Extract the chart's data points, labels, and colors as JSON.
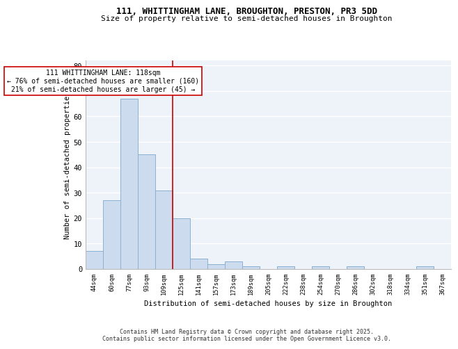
{
  "title1": "111, WHITTINGHAM LANE, BROUGHTON, PRESTON, PR3 5DD",
  "title2": "Size of property relative to semi-detached houses in Broughton",
  "xlabel": "Distribution of semi-detached houses by size in Broughton",
  "ylabel": "Number of semi-detached properties",
  "categories": [
    "44sqm",
    "60sqm",
    "77sqm",
    "93sqm",
    "109sqm",
    "125sqm",
    "141sqm",
    "157sqm",
    "173sqm",
    "189sqm",
    "205sqm",
    "222sqm",
    "238sqm",
    "254sqm",
    "270sqm",
    "286sqm",
    "302sqm",
    "318sqm",
    "334sqm",
    "351sqm",
    "367sqm"
  ],
  "values": [
    7,
    27,
    67,
    45,
    31,
    20,
    4,
    2,
    3,
    1,
    0,
    1,
    0,
    1,
    0,
    1,
    0,
    0,
    0,
    1,
    0
  ],
  "bar_color": "#ccdcee",
  "bar_edge_color": "#8ab0d0",
  "background_color": "#eef2f9",
  "grid_color": "#ffffff",
  "property_line_x": 4.5,
  "annotation_line1": "111 WHITTINGHAM LANE: 118sqm",
  "annotation_line2": "← 76% of semi-detached houses are smaller (160)",
  "annotation_line3": "21% of semi-detached houses are larger (45) →",
  "annotation_box_color": "#ffffff",
  "annotation_box_edge": "#cc0000",
  "vline_color": "#cc0000",
  "ylim": [
    0,
    82
  ],
  "yticks": [
    0,
    10,
    20,
    30,
    40,
    50,
    60,
    70,
    80
  ],
  "footer1": "Contains HM Land Registry data © Crown copyright and database right 2025.",
  "footer2": "Contains public sector information licensed under the Open Government Licence v3.0."
}
